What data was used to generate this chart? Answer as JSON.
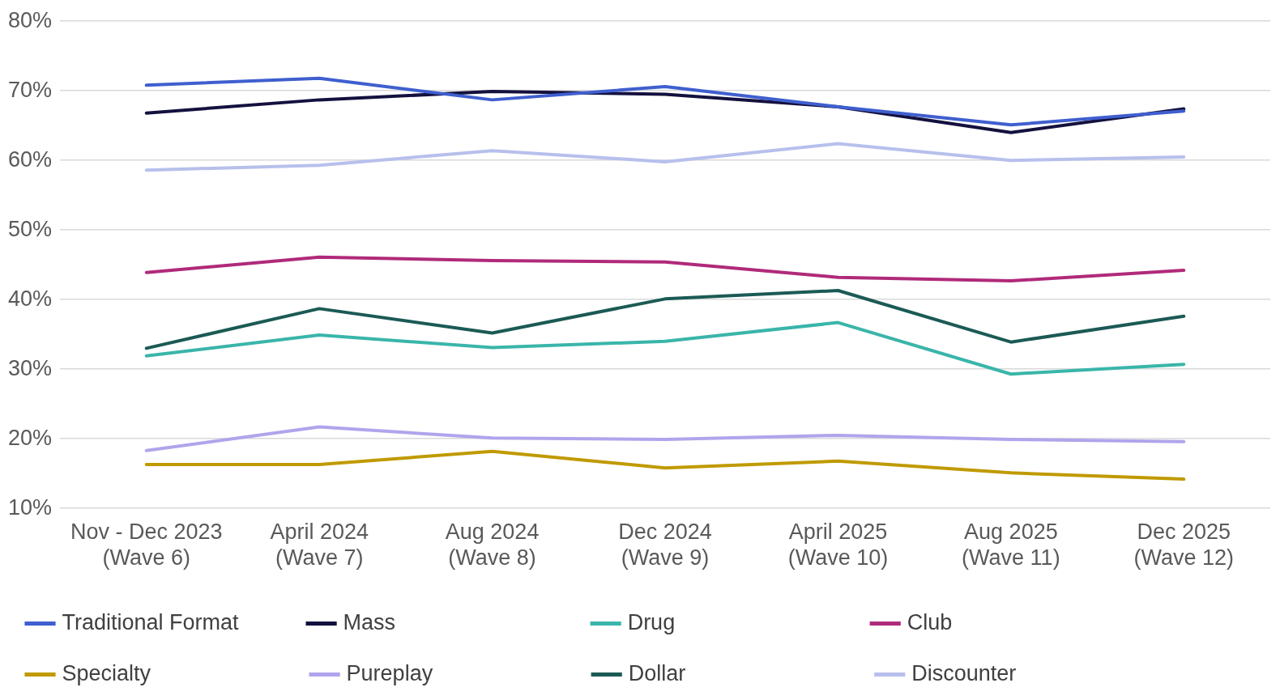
{
  "chart_data": {
    "type": "line",
    "categories": [
      "Nov - Dec 2023 (Wave 6)",
      "April 2024 (Wave 7)",
      "Aug 2024 (Wave 8)",
      "Dec 2024 (Wave 9)",
      "April 2025 (Wave 10)",
      "Aug 2025 (Wave 11)",
      "Dec 2025 (Wave 12)"
    ],
    "series": [
      {
        "name": "Traditional Format",
        "color": "#3f5fcf",
        "values": [
          70.8,
          71.8,
          68.7,
          70.6,
          67.7,
          65.1,
          67.1
        ]
      },
      {
        "name": "Mass",
        "color": "#14113f",
        "values": [
          66.8,
          68.7,
          69.9,
          69.5,
          67.7,
          64.0,
          67.4
        ]
      },
      {
        "name": "Drug",
        "color": "#3ab5aa",
        "values": [
          31.9,
          34.9,
          33.1,
          34.0,
          36.7,
          29.3,
          30.7
        ]
      },
      {
        "name": "Club",
        "color": "#b02a7a",
        "values": [
          43.9,
          46.1,
          45.6,
          45.4,
          43.2,
          42.7,
          44.2
        ]
      },
      {
        "name": "Specialty",
        "color": "#c09a00",
        "values": [
          16.3,
          16.3,
          18.2,
          15.8,
          16.8,
          15.1,
          14.2
        ]
      },
      {
        "name": "Pureplay",
        "color": "#b1a4ec",
        "values": [
          18.3,
          21.7,
          20.1,
          19.9,
          20.5,
          19.9,
          19.6
        ]
      },
      {
        "name": "Dollar",
        "color": "#1b5a55",
        "values": [
          33.0,
          38.7,
          35.2,
          40.1,
          41.3,
          33.9,
          37.6
        ]
      },
      {
        "name": "Discounter",
        "color": "#b7c0ec",
        "values": [
          58.6,
          59.3,
          61.4,
          59.8,
          62.4,
          60.0,
          60.5
        ]
      }
    ],
    "ylim": [
      10,
      80
    ],
    "yticks": [
      {
        "value": 10,
        "label": "10%"
      },
      {
        "value": 20,
        "label": "20%"
      },
      {
        "value": 30,
        "label": "30%"
      },
      {
        "value": 40,
        "label": "40%"
      },
      {
        "value": 50,
        "label": "50%"
      },
      {
        "value": 60,
        "label": "60%"
      },
      {
        "value": 70,
        "label": "70%"
      },
      {
        "value": 80,
        "label": "80%"
      }
    ],
    "grid": "y",
    "legend": "bottom",
    "marker": "none",
    "line_style": "solid"
  }
}
